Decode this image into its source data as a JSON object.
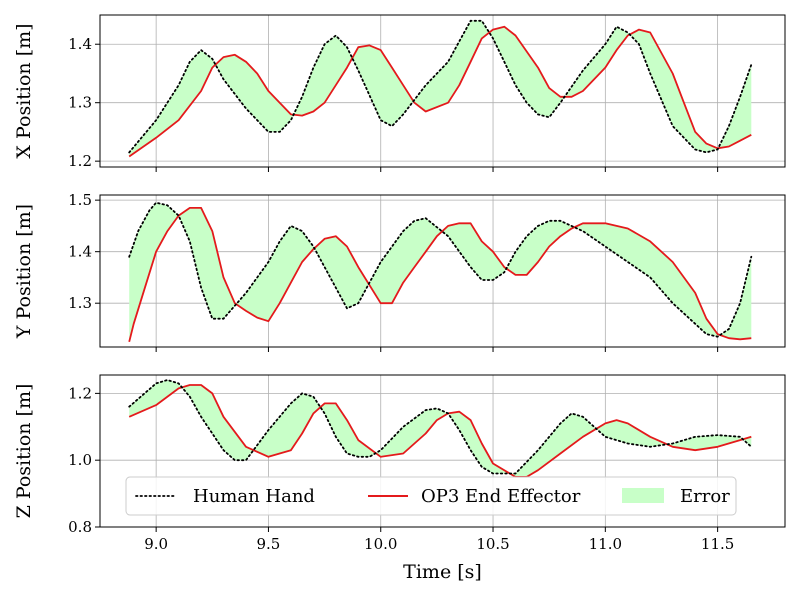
{
  "chart_data": {
    "type": "line",
    "layout": "3 stacked subplots sharing x axis",
    "xlabel": "Time [s]",
    "xlim": [
      8.75,
      11.8
    ],
    "x_ticks": [
      9.0,
      9.5,
      10.0,
      10.5,
      11.0,
      11.5
    ],
    "x_tick_labels": [
      "9.0",
      "9.5",
      "10.0",
      "10.5",
      "11.0",
      "11.5"
    ],
    "grid": true,
    "legend": {
      "location": "bottom subplot, lower center, 3 columns",
      "entries": [
        {
          "label": "Human Hand",
          "style": "dotted",
          "color": "#000000"
        },
        {
          "label": "OP3 End Effector",
          "style": "solid",
          "color": "#e41a1c"
        },
        {
          "label": "Error",
          "style": "filled area",
          "color": "#c8ffc8"
        }
      ]
    },
    "colors": {
      "human": "#000000",
      "op3": "#e41a1c",
      "error_fill": "#c8ffc8"
    },
    "subplots": [
      {
        "ylabel": "X Position [m]",
        "ylim": [
          1.19,
          1.45
        ],
        "y_ticks": [
          1.2,
          1.3,
          1.4
        ],
        "y_tick_labels": [
          "1.2",
          "1.3",
          "1.4"
        ],
        "series": [
          {
            "name": "Human Hand",
            "x": [
              8.88,
              9.0,
              9.1,
              9.15,
              9.2,
              9.25,
              9.3,
              9.4,
              9.5,
              9.55,
              9.6,
              9.65,
              9.7,
              9.75,
              9.8,
              9.85,
              9.9,
              10.0,
              10.05,
              10.1,
              10.2,
              10.3,
              10.35,
              10.4,
              10.45,
              10.5,
              10.55,
              10.6,
              10.65,
              10.7,
              10.75,
              10.8,
              10.9,
              11.0,
              11.05,
              11.1,
              11.15,
              11.2,
              11.3,
              11.4,
              11.45,
              11.5,
              11.55,
              11.6,
              11.65
            ],
            "y": [
              1.215,
              1.27,
              1.33,
              1.37,
              1.39,
              1.375,
              1.34,
              1.29,
              1.25,
              1.25,
              1.27,
              1.31,
              1.36,
              1.4,
              1.415,
              1.395,
              1.355,
              1.27,
              1.26,
              1.28,
              1.33,
              1.37,
              1.405,
              1.44,
              1.44,
              1.41,
              1.37,
              1.33,
              1.3,
              1.28,
              1.275,
              1.3,
              1.355,
              1.4,
              1.43,
              1.42,
              1.4,
              1.35,
              1.26,
              1.22,
              1.215,
              1.22,
              1.26,
              1.31,
              1.365
            ]
          },
          {
            "name": "OP3 End Effector",
            "x": [
              8.88,
              9.0,
              9.1,
              9.2,
              9.25,
              9.3,
              9.35,
              9.4,
              9.45,
              9.5,
              9.55,
              9.6,
              9.65,
              9.7,
              9.75,
              9.8,
              9.85,
              9.9,
              9.95,
              10.0,
              10.05,
              10.1,
              10.15,
              10.2,
              10.3,
              10.35,
              10.4,
              10.45,
              10.5,
              10.55,
              10.6,
              10.7,
              10.75,
              10.8,
              10.85,
              10.9,
              11.0,
              11.05,
              11.1,
              11.15,
              11.2,
              11.3,
              11.35,
              11.4,
              11.45,
              11.5,
              11.55,
              11.6,
              11.65
            ],
            "y": [
              1.208,
              1.24,
              1.27,
              1.32,
              1.36,
              1.378,
              1.382,
              1.37,
              1.35,
              1.32,
              1.3,
              1.28,
              1.278,
              1.285,
              1.3,
              1.33,
              1.36,
              1.395,
              1.398,
              1.39,
              1.36,
              1.33,
              1.3,
              1.285,
              1.3,
              1.33,
              1.37,
              1.41,
              1.425,
              1.43,
              1.415,
              1.36,
              1.325,
              1.31,
              1.31,
              1.32,
              1.36,
              1.39,
              1.415,
              1.425,
              1.42,
              1.35,
              1.3,
              1.25,
              1.23,
              1.222,
              1.225,
              1.235,
              1.245
            ]
          }
        ]
      },
      {
        "ylabel": "Y Position [m]",
        "ylim": [
          1.215,
          1.51
        ],
        "y_ticks": [
          1.3,
          1.4,
          1.5
        ],
        "y_tick_labels": [
          "1.3",
          "1.4",
          "1.5"
        ],
        "series": [
          {
            "name": "Human Hand",
            "x": [
              8.88,
              8.92,
              8.97,
              9.0,
              9.05,
              9.1,
              9.15,
              9.2,
              9.25,
              9.3,
              9.4,
              9.5,
              9.55,
              9.6,
              9.65,
              9.7,
              9.8,
              9.85,
              9.9,
              9.95,
              10.0,
              10.05,
              10.1,
              10.15,
              10.2,
              10.3,
              10.4,
              10.45,
              10.5,
              10.55,
              10.6,
              10.65,
              10.7,
              10.75,
              10.8,
              10.9,
              11.0,
              11.1,
              11.2,
              11.3,
              11.4,
              11.45,
              11.5,
              11.55,
              11.6,
              11.65
            ],
            "y": [
              1.39,
              1.44,
              1.48,
              1.495,
              1.49,
              1.47,
              1.42,
              1.33,
              1.27,
              1.27,
              1.32,
              1.38,
              1.42,
              1.45,
              1.44,
              1.41,
              1.33,
              1.29,
              1.3,
              1.34,
              1.38,
              1.41,
              1.44,
              1.46,
              1.465,
              1.43,
              1.37,
              1.345,
              1.345,
              1.36,
              1.4,
              1.43,
              1.45,
              1.46,
              1.46,
              1.44,
              1.41,
              1.38,
              1.35,
              1.3,
              1.26,
              1.24,
              1.235,
              1.25,
              1.3,
              1.39
            ]
          },
          {
            "name": "OP3 End Effector",
            "x": [
              8.88,
              8.9,
              8.95,
              9.0,
              9.05,
              9.1,
              9.15,
              9.2,
              9.25,
              9.3,
              9.35,
              9.4,
              9.45,
              9.5,
              9.55,
              9.6,
              9.65,
              9.7,
              9.75,
              9.8,
              9.85,
              9.9,
              10.0,
              10.05,
              10.1,
              10.15,
              10.2,
              10.25,
              10.3,
              10.35,
              10.4,
              10.45,
              10.5,
              10.55,
              10.6,
              10.65,
              10.7,
              10.75,
              10.8,
              10.85,
              10.9,
              11.0,
              11.1,
              11.2,
              11.3,
              11.4,
              11.45,
              11.5,
              11.55,
              11.6,
              11.65
            ],
            "y": [
              1.225,
              1.26,
              1.33,
              1.4,
              1.44,
              1.47,
              1.485,
              1.485,
              1.44,
              1.35,
              1.3,
              1.285,
              1.272,
              1.265,
              1.3,
              1.34,
              1.38,
              1.405,
              1.425,
              1.43,
              1.41,
              1.37,
              1.3,
              1.3,
              1.34,
              1.37,
              1.4,
              1.43,
              1.45,
              1.455,
              1.455,
              1.42,
              1.4,
              1.37,
              1.355,
              1.355,
              1.38,
              1.41,
              1.43,
              1.445,
              1.455,
              1.455,
              1.445,
              1.42,
              1.38,
              1.32,
              1.27,
              1.24,
              1.232,
              1.23,
              1.232
            ]
          }
        ]
      },
      {
        "ylabel": "Z Position [m]",
        "ylim": [
          0.8,
          1.255
        ],
        "y_ticks": [
          0.8,
          1.0,
          1.2
        ],
        "y_tick_labels": [
          "0.8",
          "1.0",
          "1.2"
        ],
        "series": [
          {
            "name": "Human Hand",
            "x": [
              8.88,
              9.0,
              9.05,
              9.1,
              9.15,
              9.2,
              9.3,
              9.35,
              9.4,
              9.5,
              9.6,
              9.65,
              9.7,
              9.75,
              9.8,
              9.85,
              9.9,
              9.95,
              10.0,
              10.1,
              10.2,
              10.25,
              10.3,
              10.35,
              10.4,
              10.45,
              10.5,
              10.6,
              10.7,
              10.8,
              10.85,
              10.9,
              11.0,
              11.1,
              11.2,
              11.3,
              11.4,
              11.5,
              11.6,
              11.65
            ],
            "y": [
              1.16,
              1.23,
              1.24,
              1.23,
              1.19,
              1.13,
              1.03,
              1.0,
              1.0,
              1.09,
              1.17,
              1.2,
              1.19,
              1.14,
              1.07,
              1.02,
              1.01,
              1.01,
              1.03,
              1.1,
              1.15,
              1.155,
              1.14,
              1.09,
              1.03,
              0.98,
              0.96,
              0.96,
              1.03,
              1.11,
              1.14,
              1.13,
              1.07,
              1.05,
              1.04,
              1.05,
              1.07,
              1.075,
              1.07,
              1.04
            ]
          },
          {
            "name": "OP3 End Effector",
            "x": [
              8.88,
              9.0,
              9.1,
              9.15,
              9.2,
              9.25,
              9.3,
              9.4,
              9.5,
              9.6,
              9.65,
              9.7,
              9.75,
              9.8,
              9.85,
              9.9,
              10.0,
              10.1,
              10.2,
              10.25,
              10.3,
              10.35,
              10.4,
              10.45,
              10.5,
              10.6,
              10.65,
              10.7,
              10.8,
              10.9,
              11.0,
              11.05,
              11.1,
              11.2,
              11.3,
              11.4,
              11.5,
              11.6,
              11.65
            ],
            "y": [
              1.13,
              1.165,
              1.215,
              1.225,
              1.225,
              1.2,
              1.13,
              1.04,
              1.01,
              1.03,
              1.08,
              1.14,
              1.17,
              1.17,
              1.12,
              1.06,
              1.01,
              1.02,
              1.08,
              1.12,
              1.14,
              1.145,
              1.12,
              1.05,
              0.99,
              0.95,
              0.95,
              0.97,
              1.02,
              1.07,
              1.11,
              1.12,
              1.11,
              1.07,
              1.04,
              1.03,
              1.04,
              1.06,
              1.07
            ]
          }
        ]
      }
    ]
  }
}
